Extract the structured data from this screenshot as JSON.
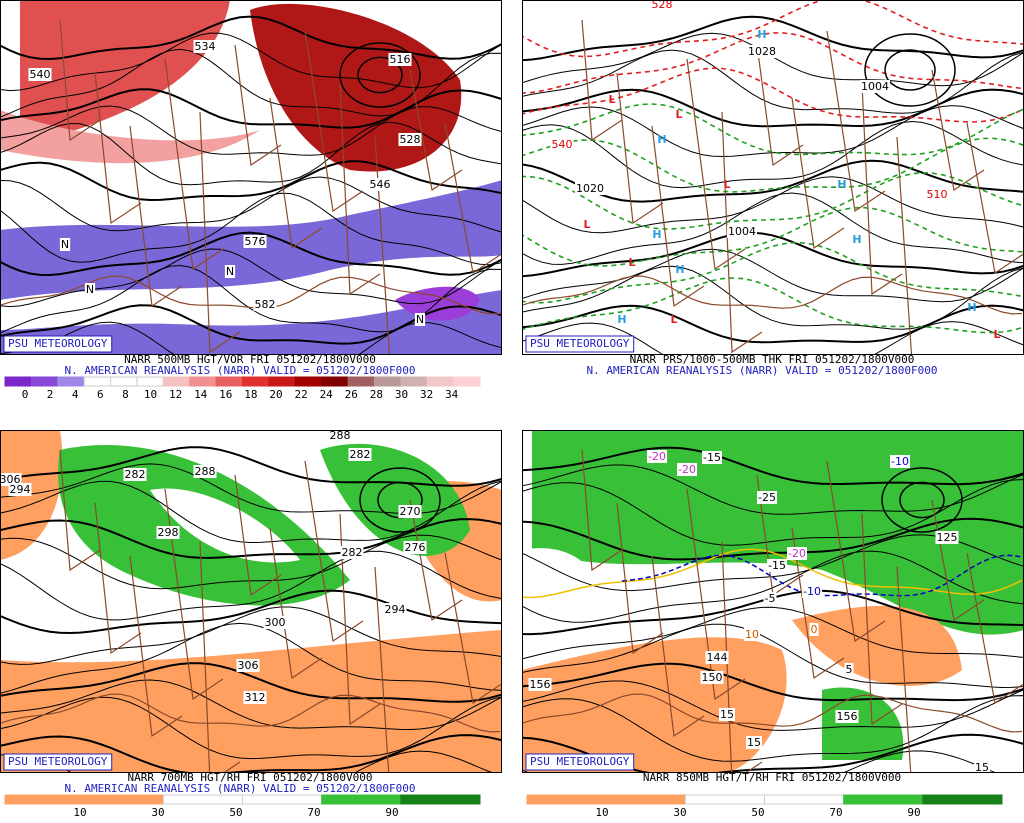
{
  "panels": [
    {
      "badge": "PSU METEOROLOGY",
      "caption": "NARR 500MB HGT/VOR FRI 051202/1800V000",
      "subcaption": "N. AMERICAN REANALYSIS (NARR) VALID = 051202/1800F000",
      "colorbar_labels": [
        "0",
        "2",
        "4",
        "6",
        "8",
        "10",
        "12",
        "14",
        "16",
        "18",
        "20",
        "22",
        "24",
        "26",
        "28",
        "30",
        "32",
        "34"
      ],
      "map_labels": [
        "540",
        "534",
        "516",
        "528",
        "546",
        "576",
        "582",
        "N",
        "N",
        "N",
        "N"
      ]
    },
    {
      "badge": "PSU METEOROLOGY",
      "caption": "NARR PRS/1000-500MB THK FRI 051202/1800V000",
      "subcaption": "N. AMERICAN REANALYSIS (NARR) VALID = 051202/1800F000",
      "colorbar_labels": [],
      "map_labels": [
        "1028",
        "1020",
        "1004",
        "1004",
        "540",
        "528",
        "510",
        "L",
        "L",
        "L",
        "L",
        "L",
        "L",
        "L",
        "H",
        "H",
        "H",
        "H",
        "H",
        "H",
        "H",
        "H"
      ]
    },
    {
      "badge": "PSU METEOROLOGY",
      "caption": "NARR 700MB HGT/RH FRI 051202/1800V000",
      "subcaption": "N. AMERICAN REANALYSIS (NARR) VALID = 051202/1800F000",
      "colorbar_labels": [
        "10",
        "30",
        "50",
        "70",
        "90"
      ],
      "map_labels": [
        "288",
        "282",
        "288",
        "282",
        "298",
        "270",
        "282",
        "276",
        "294",
        "300",
        "306",
        "312",
        "306",
        "294"
      ]
    },
    {
      "badge": "PSU METEOROLOGY",
      "caption": "NARR 850MB HGT/T/RH FRI 051202/1800V000",
      "subcaption": "",
      "colorbar_labels": [
        "10",
        "30",
        "50",
        "70",
        "90"
      ],
      "map_labels": [
        "-20",
        "-20",
        "-15",
        "-25",
        "-10",
        "-20",
        "-15",
        "-5",
        "-10",
        "10",
        "0",
        "5",
        "15",
        "15",
        "15",
        "156",
        "156",
        "144",
        "150",
        "125"
      ]
    }
  ]
}
